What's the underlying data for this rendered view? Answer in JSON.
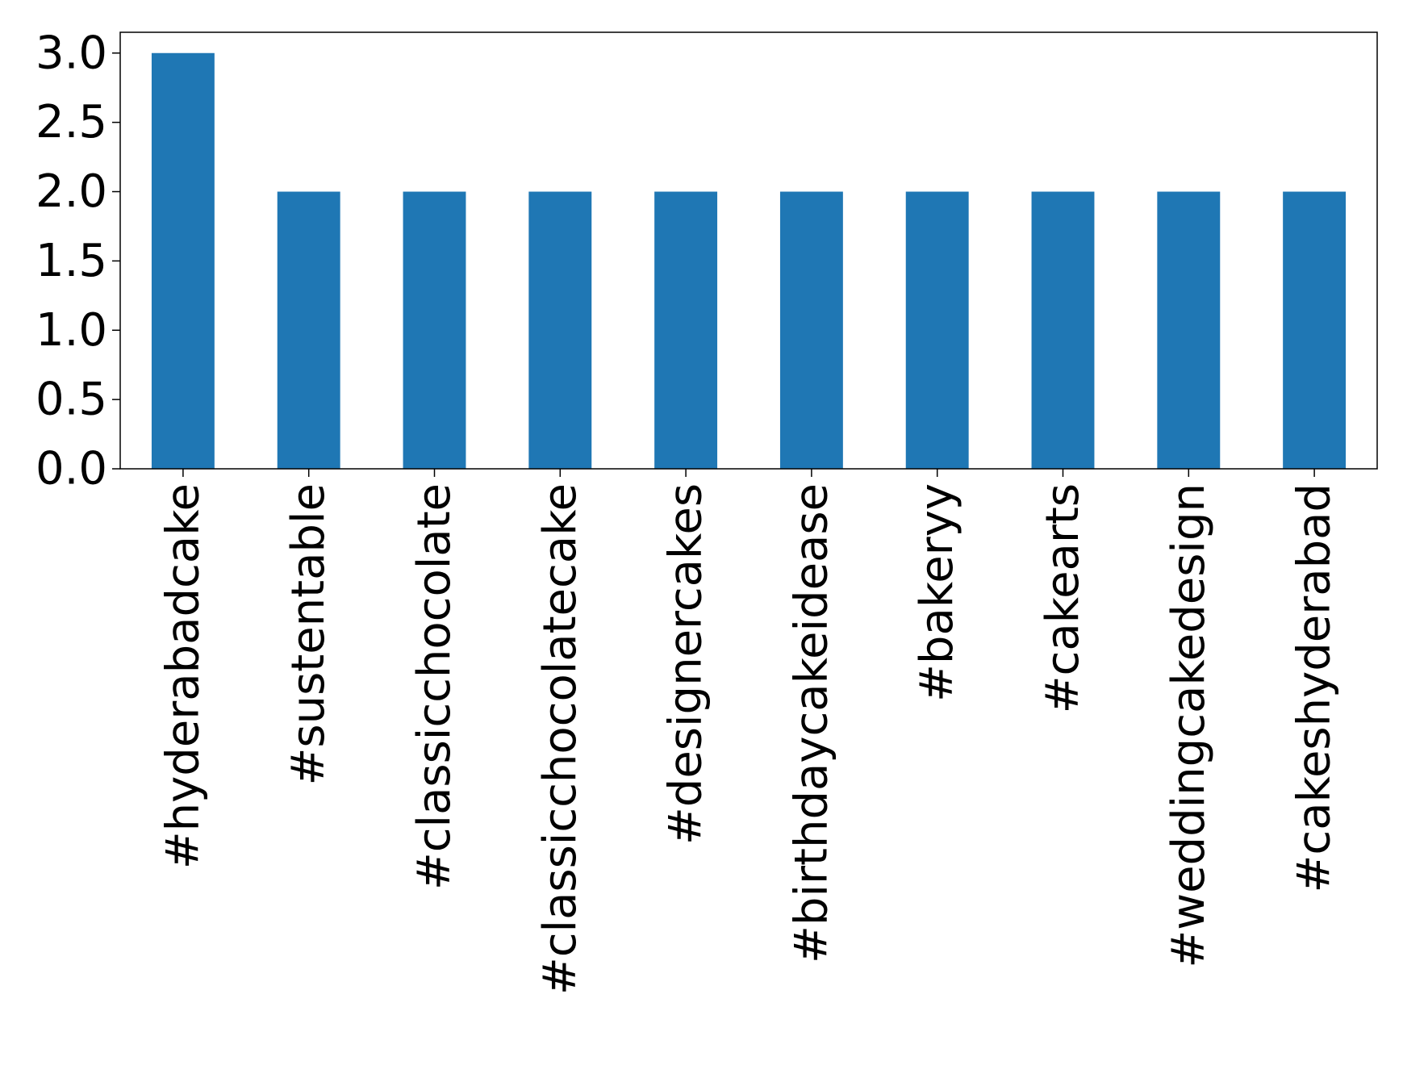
{
  "chart_data": {
    "type": "bar",
    "categories": [
      "#hyderabadcake",
      "#sustentable",
      "#classicchocolate",
      "#classicchocolatecake",
      "#designercakes",
      "#birthdaycakeidease",
      "#bakeryy",
      "#cakearts",
      "#weddingcakedesign",
      "#cakeshyderabad"
    ],
    "values": [
      3,
      2,
      2,
      2,
      2,
      2,
      2,
      2,
      2,
      2
    ],
    "color": "#1f77b4",
    "ylim": [
      0,
      3.15
    ],
    "yticks": [
      {
        "value": 0,
        "label": "0.0"
      },
      {
        "value": 0.5,
        "label": "0.5"
      },
      {
        "value": 1,
        "label": "1.0"
      },
      {
        "value": 1.5,
        "label": "1.5"
      },
      {
        "value": 2,
        "label": "2.0"
      },
      {
        "value": 2.5,
        "label": "2.5"
      },
      {
        "value": 3,
        "label": "3.0"
      }
    ],
    "grid": false
  }
}
